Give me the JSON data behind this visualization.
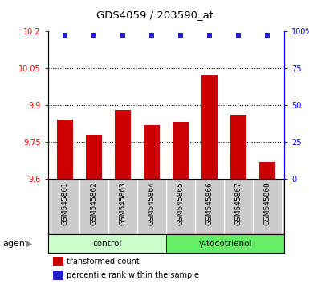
{
  "title": "GDS4059 / 203590_at",
  "samples": [
    "GSM545861",
    "GSM545862",
    "GSM545863",
    "GSM545864",
    "GSM545865",
    "GSM545866",
    "GSM545867",
    "GSM545868"
  ],
  "transformed_counts": [
    9.84,
    9.78,
    9.88,
    9.82,
    9.83,
    10.02,
    9.86,
    9.67
  ],
  "percentile_ranks": [
    97,
    97,
    97,
    97,
    97,
    97,
    97,
    97
  ],
  "groups": [
    {
      "label": "control",
      "samples": [
        0,
        1,
        2,
        3
      ],
      "color": "#ccffcc"
    },
    {
      "label": "γ-tocotrienol",
      "samples": [
        4,
        5,
        6,
        7
      ],
      "color": "#66ee66"
    }
  ],
  "ylim": [
    9.6,
    10.2
  ],
  "yticks_left": [
    9.6,
    9.75,
    9.9,
    10.05,
    10.2
  ],
  "yticks_right": [
    0,
    25,
    50,
    75,
    100
  ],
  "right_ylim": [
    0,
    100
  ],
  "bar_color": "#cc0000",
  "dot_color": "#2222cc",
  "grid_color": "#000000",
  "bar_width": 0.55,
  "agent_label": "agent",
  "legend_items": [
    {
      "color": "#cc0000",
      "label": "transformed count"
    },
    {
      "color": "#2222cc",
      "label": "percentile rank within the sample"
    }
  ],
  "background_color": "#ffffff",
  "plot_bg_color": "#ffffff",
  "label_area_color": "#cccccc"
}
